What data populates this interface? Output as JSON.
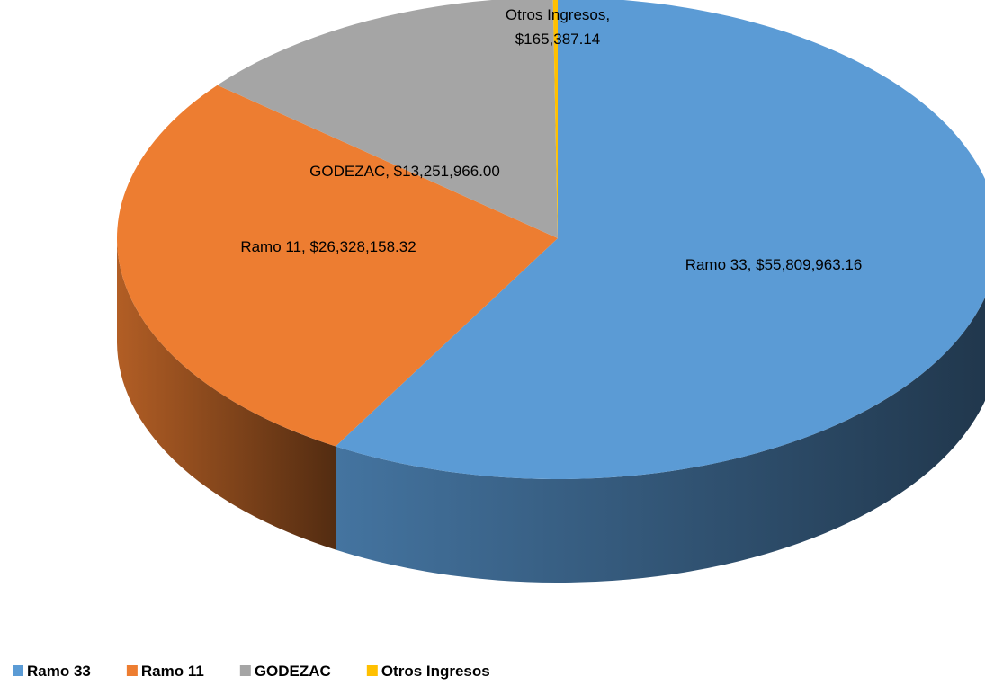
{
  "chart_data": {
    "type": "pie",
    "categories": [
      "Ramo 33",
      "Ramo 11",
      "GODEZAC",
      "Otros Ingresos"
    ],
    "values": [
      55809963.16,
      26328158.32,
      13251966.0,
      165387.14
    ],
    "value_labels": [
      "$55,809,963.16",
      "$26,328,158.32",
      "$13,251,966.00",
      "$165,387.14"
    ],
    "colors": [
      "#5b9bd5",
      "#ed7d31",
      "#a5a5a5",
      "#ffc000"
    ],
    "legend": "bottom-left"
  }
}
